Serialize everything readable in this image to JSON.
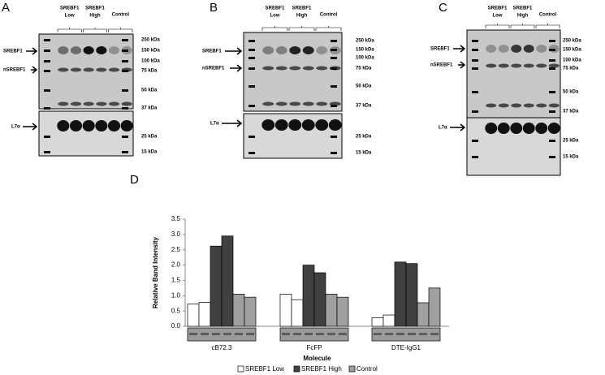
{
  "panels": [
    {
      "letter": "A",
      "groups": [
        [
          "SREBF1",
          "Low"
        ],
        [
          "SREBF1",
          "High"
        ],
        [
          "Control"
        ]
      ],
      "bands": [
        "SREBF1",
        "nSREBF1"
      ],
      "loading": "L7α",
      "markers": [
        "250 kDa",
        "150 kDa",
        "100 kDa",
        "75 kDa",
        "50 kDa",
        "37 kDa",
        "25 kDa",
        "15 kDa"
      ]
    },
    {
      "letter": "B",
      "groups": [
        [
          "SREBF1",
          "Low"
        ],
        [
          "SREBF1",
          "High"
        ],
        [
          "Control"
        ]
      ],
      "bands": [
        "SREBF1",
        "nSREBF1"
      ],
      "loading": "L7α",
      "markers": [
        "250 kDa",
        "150 kDa",
        "100 kDa",
        "75 kDa",
        "50 kDa",
        "37 kDa",
        "25 kDa",
        "15 kDa"
      ]
    },
    {
      "letter": "C",
      "groups": [
        [
          "SREBF1",
          "Low"
        ],
        [
          "SREBF1",
          "High"
        ],
        [
          "Control"
        ]
      ],
      "bands": [
        "SREBF1",
        "nSREBF1"
      ],
      "loading": "L7α",
      "markers": [
        "250 kDa",
        "150 kDa",
        "100 kDa",
        "75 kDa",
        "50 kDa",
        "37 kDa",
        "25 kDa",
        "15 kDa"
      ]
    }
  ],
  "chart_data": {
    "type": "bar",
    "letter": "D",
    "ylabel": "Relative Band Intensity",
    "xlabel": "Molecule",
    "categories": [
      "cB72.3",
      "FcFP",
      "DTE-IgG1"
    ],
    "series": [
      {
        "name": "SREBF1 Low",
        "color": "#ffffff",
        "values": [
          [
            0.73,
            0.78
          ],
          [
            1.05,
            0.87
          ],
          [
            0.28,
            0.37
          ]
        ]
      },
      {
        "name": "SREBF1 High",
        "color": "#404040",
        "values": [
          [
            2.62,
            2.95
          ],
          [
            2.0,
            1.75
          ],
          [
            2.1,
            2.05
          ]
        ]
      },
      {
        "name": "Control",
        "color": "#a0a0a0",
        "values": [
          [
            1.05,
            0.95
          ],
          [
            1.05,
            0.95
          ],
          [
            0.77,
            1.25
          ]
        ]
      }
    ],
    "ylim": [
      0,
      3.5
    ],
    "yticks": [
      {
        "value": 0,
        "label": "0.0"
      },
      0.5,
      {
        "value": 1,
        "label": "1.0"
      },
      1.5,
      {
        "value": 2,
        "label": "2.0"
      },
      2.5,
      {
        "value": 3,
        "label": "3.0"
      },
      3.5
    ],
    "legend": "bottom"
  }
}
